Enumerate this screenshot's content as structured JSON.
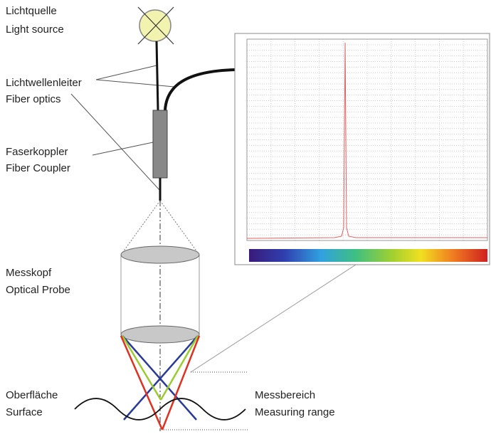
{
  "labels": {
    "light_source": [
      "Lichtquelle",
      "Light source"
    ],
    "fiber_optics": [
      "Lichtwellenleiter",
      "Fiber optics"
    ],
    "fiber_coupler": [
      "Faserkoppler",
      "Fiber Coupler"
    ],
    "optical_probe": [
      "Messkopf",
      "Optical Probe"
    ],
    "surface": [
      "Oberfläche",
      "Surface"
    ],
    "measuring_range": [
      "Messbereich",
      "Measuring range"
    ]
  }
}
